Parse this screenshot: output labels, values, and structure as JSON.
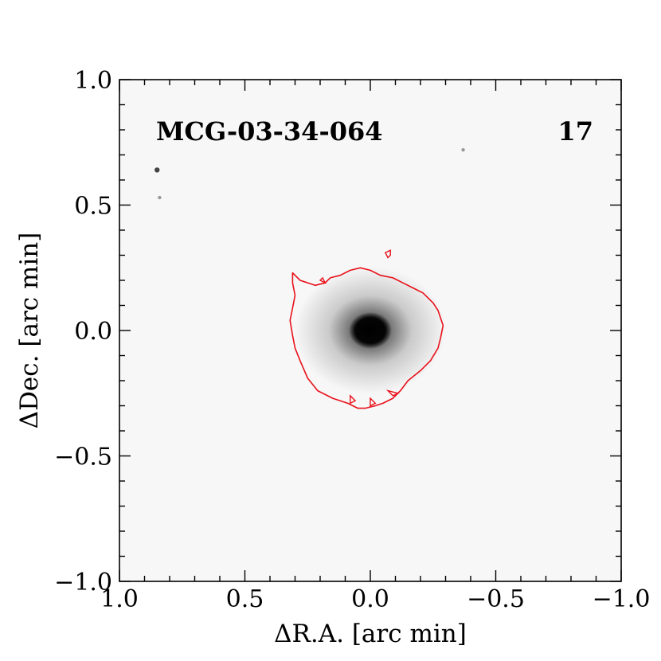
{
  "chart_data": {
    "type": "image",
    "annotations": {
      "object_name": "MCG-03-34-064",
      "panel_number": "17"
    },
    "xlabel": "ΔR.A. [arc min]",
    "ylabel": "ΔDec. [arc min]",
    "xlim": [
      1.0,
      -1.0
    ],
    "ylim": [
      -1.0,
      1.0
    ],
    "xticks": [
      {
        "value": 1.0,
        "label": "1.0"
      },
      {
        "value": 0.5,
        "label": "0.5"
      },
      {
        "value": 0.0,
        "label": "0.0"
      },
      {
        "value": -0.5,
        "label": "−0.5"
      },
      {
        "value": -1.0,
        "label": "−1.0"
      }
    ],
    "yticks": [
      {
        "value": 1.0,
        "label": "1.0"
      },
      {
        "value": 0.5,
        "label": "0.5"
      },
      {
        "value": 0.0,
        "label": "0.0"
      },
      {
        "value": -0.5,
        "label": "−0.5"
      },
      {
        "value": -1.0,
        "label": "−1.0"
      }
    ],
    "minor_tick_step": 0.1,
    "source": {
      "x": 0.0,
      "y": 0.0
    },
    "stars": [
      {
        "x": 0.85,
        "y": 0.64
      },
      {
        "x": 0.84,
        "y": 0.53
      },
      {
        "x": -0.37,
        "y": 0.72
      }
    ],
    "contour_color": "#e8101a",
    "contour": [
      [
        0.31,
        0.23
      ],
      [
        0.28,
        0.2
      ],
      [
        0.22,
        0.18
      ],
      [
        0.18,
        0.19
      ],
      [
        0.16,
        0.21
      ],
      [
        0.12,
        0.22
      ],
      [
        0.08,
        0.24
      ],
      [
        0.04,
        0.25
      ],
      [
        0.0,
        0.24
      ],
      [
        -0.04,
        0.22
      ],
      [
        -0.09,
        0.21
      ],
      [
        -0.13,
        0.19
      ],
      [
        -0.17,
        0.17
      ],
      [
        -0.21,
        0.15
      ],
      [
        -0.25,
        0.11
      ],
      [
        -0.27,
        0.08
      ],
      [
        -0.29,
        0.02
      ],
      [
        -0.28,
        -0.03
      ],
      [
        -0.27,
        -0.07
      ],
      [
        -0.24,
        -0.12
      ],
      [
        -0.2,
        -0.16
      ],
      [
        -0.15,
        -0.2
      ],
      [
        -0.12,
        -0.24
      ],
      [
        -0.09,
        -0.27
      ],
      [
        -0.05,
        -0.29
      ],
      [
        -0.02,
        -0.3
      ],
      [
        0.02,
        -0.31
      ],
      [
        0.05,
        -0.31
      ],
      [
        0.09,
        -0.29
      ],
      [
        0.15,
        -0.27
      ],
      [
        0.21,
        -0.24
      ],
      [
        0.25,
        -0.19
      ],
      [
        0.28,
        -0.12
      ],
      [
        0.3,
        -0.07
      ],
      [
        0.31,
        -0.02
      ],
      [
        0.32,
        0.04
      ],
      [
        0.31,
        0.09
      ],
      [
        0.3,
        0.14
      ],
      [
        0.31,
        0.19
      ]
    ],
    "contour_islands": [
      [
        [
          -0.06,
          0.31
        ],
        [
          -0.08,
          0.32
        ],
        [
          -0.08,
          0.3
        ],
        [
          -0.07,
          0.29
        ]
      ],
      [
        [
          0.19,
          0.21
        ],
        [
          0.18,
          0.19
        ],
        [
          0.2,
          0.2
        ]
      ],
      [
        [
          0.0,
          -0.27
        ],
        [
          -0.02,
          -0.29
        ],
        [
          0.0,
          -0.3
        ]
      ],
      [
        [
          0.08,
          -0.26
        ],
        [
          0.06,
          -0.28
        ],
        [
          0.08,
          -0.29
        ]
      ],
      [
        [
          -0.07,
          -0.24
        ],
        [
          -0.11,
          -0.25
        ],
        [
          -0.09,
          -0.26
        ]
      ]
    ]
  }
}
